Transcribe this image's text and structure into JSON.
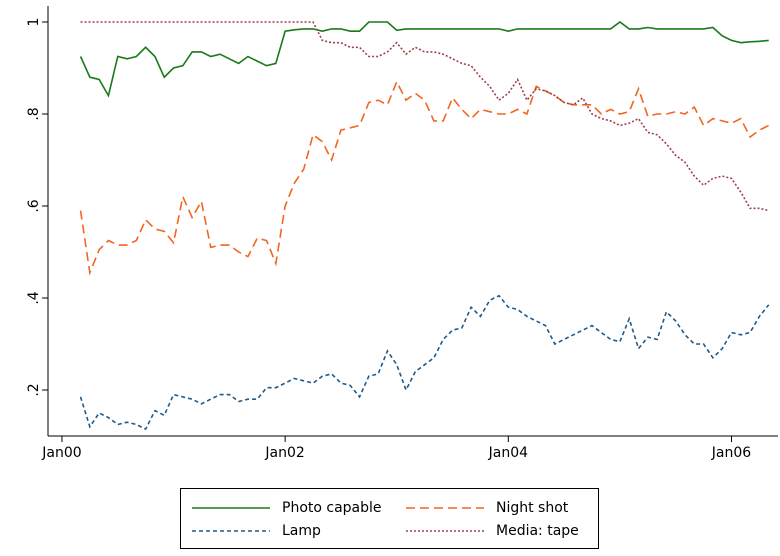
{
  "chart_data": {
    "type": "line",
    "x": [
      2,
      3,
      4,
      5,
      6,
      7,
      8,
      9,
      10,
      11,
      12,
      13,
      14,
      15,
      16,
      17,
      18,
      19,
      20,
      21,
      22,
      23,
      24,
      25,
      26,
      27,
      28,
      29,
      30,
      31,
      32,
      33,
      34,
      35,
      36,
      37,
      38,
      39,
      40,
      41,
      42,
      43,
      44,
      45,
      46,
      47,
      48,
      49,
      50,
      51,
      52,
      53,
      54,
      55,
      56,
      57,
      58,
      59,
      60,
      61,
      62,
      63,
      64,
      65,
      66,
      67,
      68,
      69,
      70,
      71,
      72,
      73,
      74,
      75,
      76
    ],
    "xlim": [
      -1.5,
      77
    ],
    "xticks": [
      {
        "value": 0,
        "label": "Jan00"
      },
      {
        "value": 24,
        "label": "Jan02"
      },
      {
        "value": 48,
        "label": "Jan04"
      },
      {
        "value": 72,
        "label": "Jan06"
      }
    ],
    "ylim": [
      0.1,
      1.03
    ],
    "yticks": [
      {
        "value": 0.2,
        "label": ".2"
      },
      {
        "value": 0.4,
        "label": ".4"
      },
      {
        "value": 0.6,
        "label": ".6"
      },
      {
        "value": 0.8,
        "label": ".8"
      },
      1
    ],
    "grid": false,
    "series": [
      {
        "name": "Photo capable",
        "color": "#1a7a1a",
        "dash": "none",
        "values": [
          0.925,
          0.88,
          0.875,
          0.84,
          0.925,
          0.92,
          0.925,
          0.945,
          0.925,
          0.88,
          0.9,
          0.905,
          0.935,
          0.935,
          0.925,
          0.93,
          0.92,
          0.91,
          0.925,
          0.915,
          0.905,
          0.91,
          0.98,
          0.983,
          0.985,
          0.985,
          0.98,
          0.985,
          0.985,
          0.98,
          0.98,
          1.0,
          1.0,
          1.0,
          0.982,
          0.985,
          0.985,
          0.985,
          0.985,
          0.985,
          0.985,
          0.985,
          0.985,
          0.985,
          0.985,
          0.985,
          0.98,
          0.985,
          0.985,
          0.985,
          0.985,
          0.985,
          0.985,
          0.985,
          0.985,
          0.985,
          0.985,
          0.985,
          1.0,
          0.985,
          0.985,
          0.988,
          0.985,
          0.985,
          0.985,
          0.985,
          0.985,
          0.985,
          0.988,
          0.97,
          0.96,
          0.955,
          0.957,
          0.958,
          0.96
        ]
      },
      {
        "name": "Night shot",
        "color": "#f26522",
        "dash": "9 5",
        "values": [
          0.59,
          0.455,
          0.505,
          0.525,
          0.515,
          0.515,
          0.525,
          0.57,
          0.55,
          0.545,
          0.52,
          0.62,
          0.575,
          0.61,
          0.51,
          0.515,
          0.515,
          0.5,
          0.49,
          0.53,
          0.525,
          0.475,
          0.6,
          0.65,
          0.68,
          0.755,
          0.74,
          0.7,
          0.765,
          0.77,
          0.775,
          0.825,
          0.83,
          0.82,
          0.87,
          0.83,
          0.845,
          0.83,
          0.785,
          0.785,
          0.835,
          0.81,
          0.79,
          0.81,
          0.805,
          0.8,
          0.8,
          0.81,
          0.8,
          0.86,
          0.85,
          0.84,
          0.825,
          0.82,
          0.82,
          0.82,
          0.8,
          0.81,
          0.8,
          0.805,
          0.855,
          0.795,
          0.8,
          0.8,
          0.805,
          0.8,
          0.815,
          0.775,
          0.79,
          0.785,
          0.78,
          0.79,
          0.75,
          0.765,
          0.775
        ]
      },
      {
        "name": "Lamp",
        "color": "#1f5a8a",
        "dash": "4 3",
        "values": [
          0.185,
          0.12,
          0.15,
          0.14,
          0.125,
          0.13,
          0.125,
          0.115,
          0.155,
          0.145,
          0.19,
          0.185,
          0.18,
          0.17,
          0.18,
          0.19,
          0.19,
          0.175,
          0.18,
          0.18,
          0.205,
          0.205,
          0.215,
          0.225,
          0.22,
          0.215,
          0.23,
          0.235,
          0.215,
          0.21,
          0.185,
          0.23,
          0.235,
          0.285,
          0.255,
          0.2,
          0.24,
          0.255,
          0.27,
          0.31,
          0.33,
          0.335,
          0.38,
          0.36,
          0.395,
          0.405,
          0.38,
          0.375,
          0.36,
          0.35,
          0.34,
          0.3,
          0.31,
          0.32,
          0.33,
          0.34,
          0.325,
          0.31,
          0.305,
          0.355,
          0.29,
          0.315,
          0.31,
          0.37,
          0.35,
          0.32,
          0.3,
          0.3,
          0.27,
          0.29,
          0.325,
          0.32,
          0.325,
          0.36,
          0.385
        ]
      },
      {
        "name": "Media: tape",
        "color": "#a0404a",
        "dash": "2 2",
        "values": [
          1,
          1,
          1,
          1,
          1,
          1,
          1,
          1,
          1,
          1,
          1,
          1,
          1,
          1,
          1,
          1,
          1,
          1,
          1,
          1,
          1,
          1,
          1,
          1,
          1,
          1,
          0.96,
          0.955,
          0.955,
          0.945,
          0.945,
          0.925,
          0.925,
          0.935,
          0.955,
          0.93,
          0.945,
          0.935,
          0.935,
          0.93,
          0.92,
          0.91,
          0.905,
          0.88,
          0.86,
          0.83,
          0.845,
          0.875,
          0.83,
          0.855,
          0.85,
          0.84,
          0.825,
          0.82,
          0.835,
          0.8,
          0.79,
          0.785,
          0.775,
          0.78,
          0.79,
          0.76,
          0.755,
          0.735,
          0.71,
          0.695,
          0.665,
          0.645,
          0.66,
          0.665,
          0.66,
          0.63,
          0.595,
          0.595,
          0.59
        ]
      }
    ]
  }
}
